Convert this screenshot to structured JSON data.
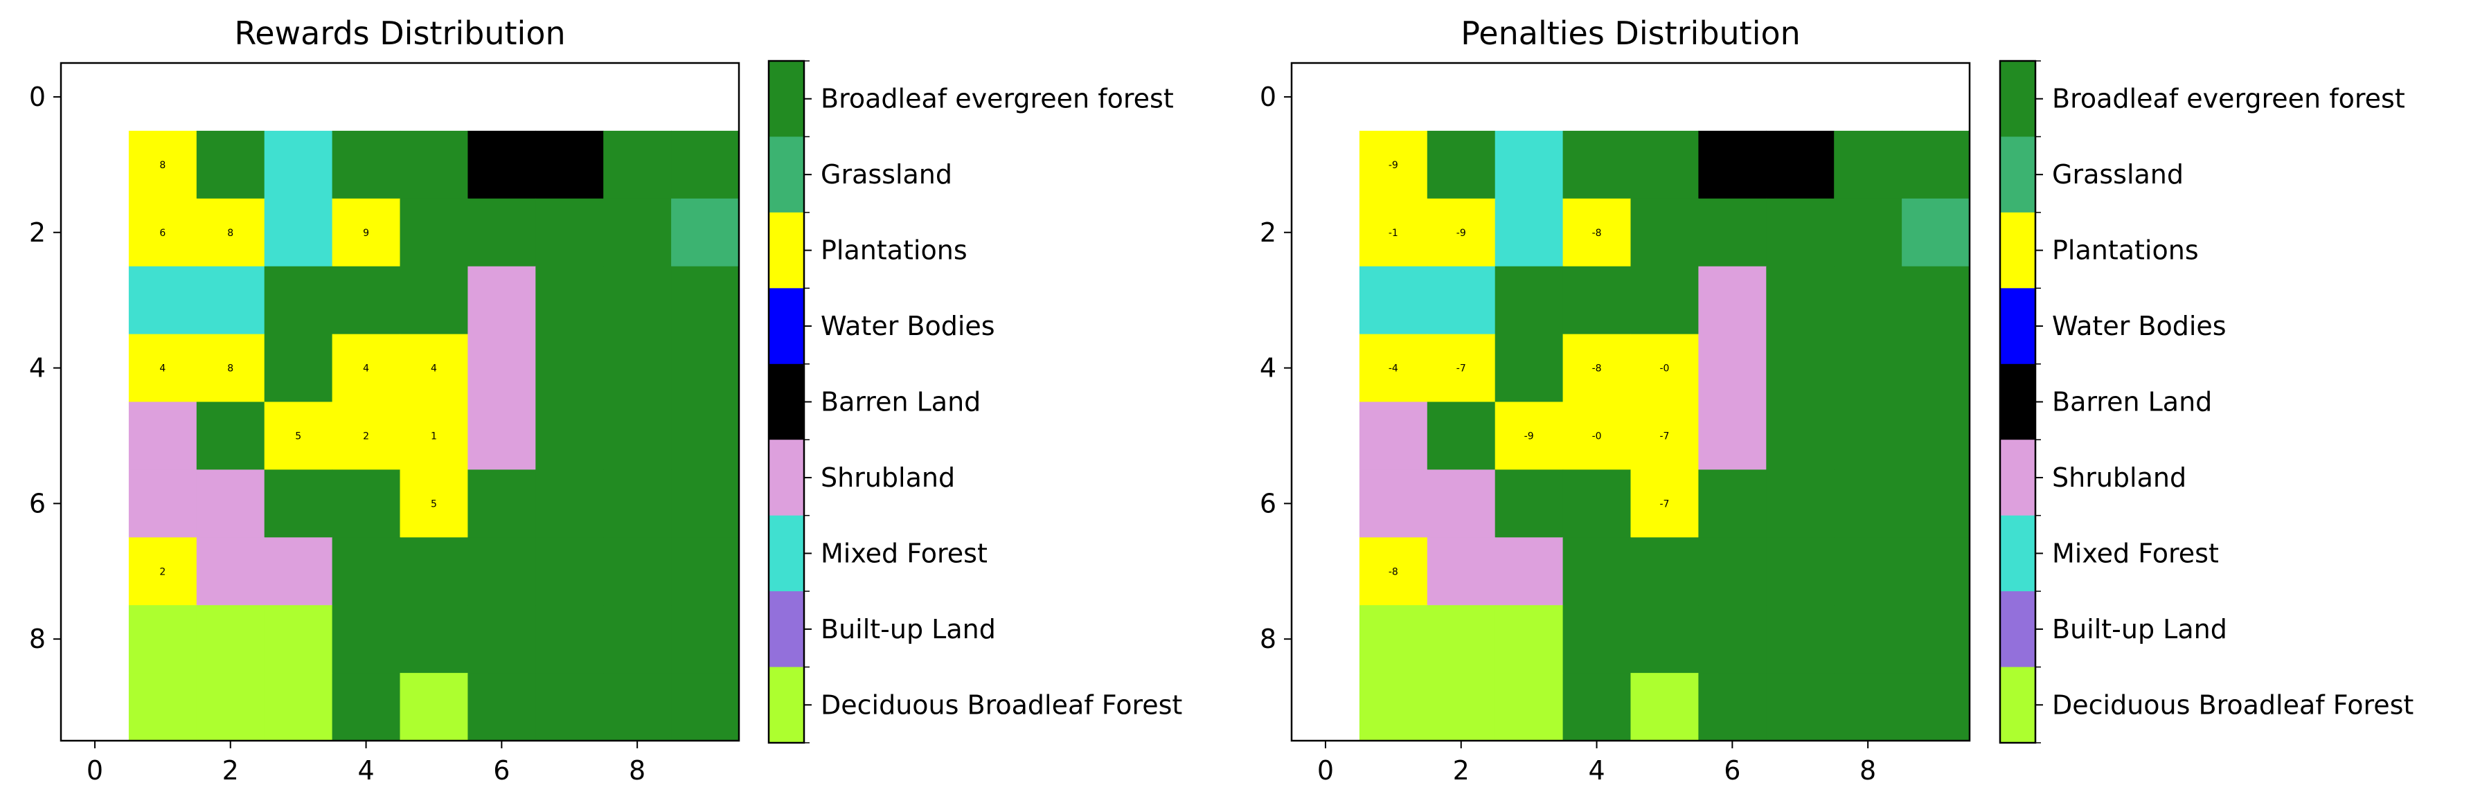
{
  "land_classes": [
    {
      "code": 0,
      "label": "Broadleaf evergreen forest",
      "color": "#228B22"
    },
    {
      "code": 1,
      "label": "Grassland",
      "color": "#3CB371"
    },
    {
      "code": 2,
      "label": "Plantations",
      "color": "#FFFF00"
    },
    {
      "code": 3,
      "label": "Water Bodies",
      "color": "#0000FF"
    },
    {
      "code": 4,
      "label": "Barren Land",
      "color": "#000000"
    },
    {
      "code": 5,
      "label": "Shrubland",
      "color": "#DDA0DD"
    },
    {
      "code": 6,
      "label": "Mixed Forest",
      "color": "#40E0D0"
    },
    {
      "code": 7,
      "label": "Built-up Land",
      "color": "#9370DB"
    },
    {
      "code": 8,
      "label": "Deciduous Broadleaf Forest",
      "color": "#ADFF2F"
    },
    {
      "code": -1,
      "label": "",
      "color": "#FFFFFF"
    }
  ],
  "chart_data": [
    {
      "type": "heatmap",
      "title": "Rewards Distribution",
      "xlabel": "",
      "ylabel": "",
      "xticks": [
        "0",
        "2",
        "4",
        "6",
        "8"
      ],
      "yticks": [
        "0",
        "2",
        "4",
        "6",
        "8"
      ],
      "xlim": [
        -0.5,
        9.5
      ],
      "ylim": [
        9.5,
        -0.5
      ],
      "grid": [
        [
          -1,
          -1,
          -1,
          -1,
          -1,
          -1,
          -1,
          -1,
          -1,
          -1
        ],
        [
          -1,
          2,
          0,
          6,
          0,
          0,
          4,
          4,
          0,
          0
        ],
        [
          -1,
          2,
          2,
          6,
          2,
          0,
          0,
          0,
          0,
          1
        ],
        [
          -1,
          6,
          6,
          0,
          0,
          0,
          5,
          0,
          0,
          0
        ],
        [
          -1,
          2,
          2,
          0,
          2,
          2,
          5,
          0,
          0,
          0
        ],
        [
          -1,
          5,
          0,
          2,
          2,
          2,
          5,
          0,
          0,
          0
        ],
        [
          -1,
          5,
          5,
          0,
          0,
          2,
          0,
          0,
          0,
          0
        ],
        [
          -1,
          2,
          5,
          5,
          0,
          0,
          0,
          0,
          0,
          0
        ],
        [
          -1,
          8,
          8,
          8,
          0,
          0,
          0,
          0,
          0,
          0
        ],
        [
          -1,
          8,
          8,
          8,
          0,
          8,
          0,
          0,
          0,
          0
        ]
      ],
      "annotations": [
        {
          "row": 1,
          "col": 1,
          "text": "8"
        },
        {
          "row": 2,
          "col": 1,
          "text": "6"
        },
        {
          "row": 2,
          "col": 2,
          "text": "8"
        },
        {
          "row": 2,
          "col": 4,
          "text": "9"
        },
        {
          "row": 4,
          "col": 1,
          "text": "4"
        },
        {
          "row": 4,
          "col": 2,
          "text": "8"
        },
        {
          "row": 4,
          "col": 4,
          "text": "4"
        },
        {
          "row": 4,
          "col": 5,
          "text": "4"
        },
        {
          "row": 5,
          "col": 3,
          "text": "5"
        },
        {
          "row": 5,
          "col": 4,
          "text": "2"
        },
        {
          "row": 5,
          "col": 5,
          "text": "1"
        },
        {
          "row": 6,
          "col": 5,
          "text": "5"
        },
        {
          "row": 7,
          "col": 1,
          "text": "2"
        }
      ]
    },
    {
      "type": "heatmap",
      "title": "Penalties Distribution",
      "xlabel": "",
      "ylabel": "",
      "xticks": [
        "0",
        "2",
        "4",
        "6",
        "8"
      ],
      "yticks": [
        "0",
        "2",
        "4",
        "6",
        "8"
      ],
      "xlim": [
        -0.5,
        9.5
      ],
      "ylim": [
        9.5,
        -0.5
      ],
      "grid": [
        [
          -1,
          -1,
          -1,
          -1,
          -1,
          -1,
          -1,
          -1,
          -1,
          -1
        ],
        [
          -1,
          2,
          0,
          6,
          0,
          0,
          4,
          4,
          0,
          0
        ],
        [
          -1,
          2,
          2,
          6,
          2,
          0,
          0,
          0,
          0,
          1
        ],
        [
          -1,
          6,
          6,
          0,
          0,
          0,
          5,
          0,
          0,
          0
        ],
        [
          -1,
          2,
          2,
          0,
          2,
          2,
          5,
          0,
          0,
          0
        ],
        [
          -1,
          5,
          0,
          2,
          2,
          2,
          5,
          0,
          0,
          0
        ],
        [
          -1,
          5,
          5,
          0,
          0,
          2,
          0,
          0,
          0,
          0
        ],
        [
          -1,
          2,
          5,
          5,
          0,
          0,
          0,
          0,
          0,
          0
        ],
        [
          -1,
          8,
          8,
          8,
          0,
          0,
          0,
          0,
          0,
          0
        ],
        [
          -1,
          8,
          8,
          8,
          0,
          8,
          0,
          0,
          0,
          0
        ]
      ],
      "annotations": [
        {
          "row": 1,
          "col": 1,
          "text": "-9"
        },
        {
          "row": 2,
          "col": 1,
          "text": "-1"
        },
        {
          "row": 2,
          "col": 2,
          "text": "-9"
        },
        {
          "row": 2,
          "col": 4,
          "text": "-8"
        },
        {
          "row": 4,
          "col": 1,
          "text": "-4"
        },
        {
          "row": 4,
          "col": 2,
          "text": "-7"
        },
        {
          "row": 4,
          "col": 4,
          "text": "-8"
        },
        {
          "row": 4,
          "col": 5,
          "text": "-0"
        },
        {
          "row": 5,
          "col": 3,
          "text": "-9"
        },
        {
          "row": 5,
          "col": 4,
          "text": "-0"
        },
        {
          "row": 5,
          "col": 5,
          "text": "-7"
        },
        {
          "row": 6,
          "col": 5,
          "text": "-7"
        },
        {
          "row": 7,
          "col": 1,
          "text": "-8"
        }
      ]
    }
  ]
}
